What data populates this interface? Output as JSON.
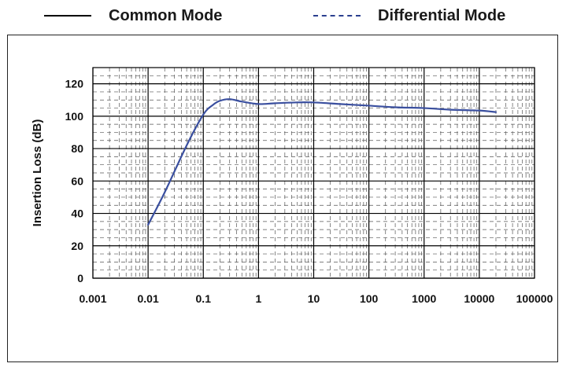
{
  "legend": {
    "common_mode": "Common Mode",
    "differential_mode": "Differential Mode"
  },
  "colors": {
    "common_mode_line": "#000000",
    "differential_mode_line": "#2a3f8f",
    "curve": "#3a4f9f",
    "grid_major": "#000000",
    "grid_minor": "#555555"
  },
  "chart_data": {
    "type": "line",
    "x_scale": "log",
    "ylabel": "Insertion Loss (dB)",
    "xlim": [
      0.001,
      100000
    ],
    "ylim": [
      0,
      130
    ],
    "x_ticks": [
      0.001,
      0.01,
      0.1,
      1,
      10,
      100,
      1000,
      10000,
      100000
    ],
    "x_tick_labels": [
      "0.001",
      "0.01",
      "0.1",
      "1",
      "10",
      "100",
      "1000",
      "10000",
      "100000"
    ],
    "y_ticks": [
      0,
      20,
      40,
      60,
      80,
      100,
      120
    ],
    "y_tick_labels": [
      "0",
      "20",
      "40",
      "60",
      "80",
      "100",
      "120"
    ],
    "grid": true,
    "legend_position": "top",
    "series": [
      {
        "name": "Differential Mode",
        "style": "solid",
        "x": [
          0.01,
          0.02,
          0.05,
          0.1,
          0.15,
          0.2,
          0.3,
          0.5,
          1,
          2,
          5,
          10,
          30,
          100,
          300,
          1000,
          3000,
          10000,
          20000
        ],
        "y": [
          33,
          53,
          82,
          101,
          107,
          109.5,
          110.5,
          109,
          107.5,
          108,
          108.5,
          108.5,
          107.5,
          106.5,
          105.5,
          105,
          104,
          103.5,
          102.5
        ]
      }
    ]
  }
}
